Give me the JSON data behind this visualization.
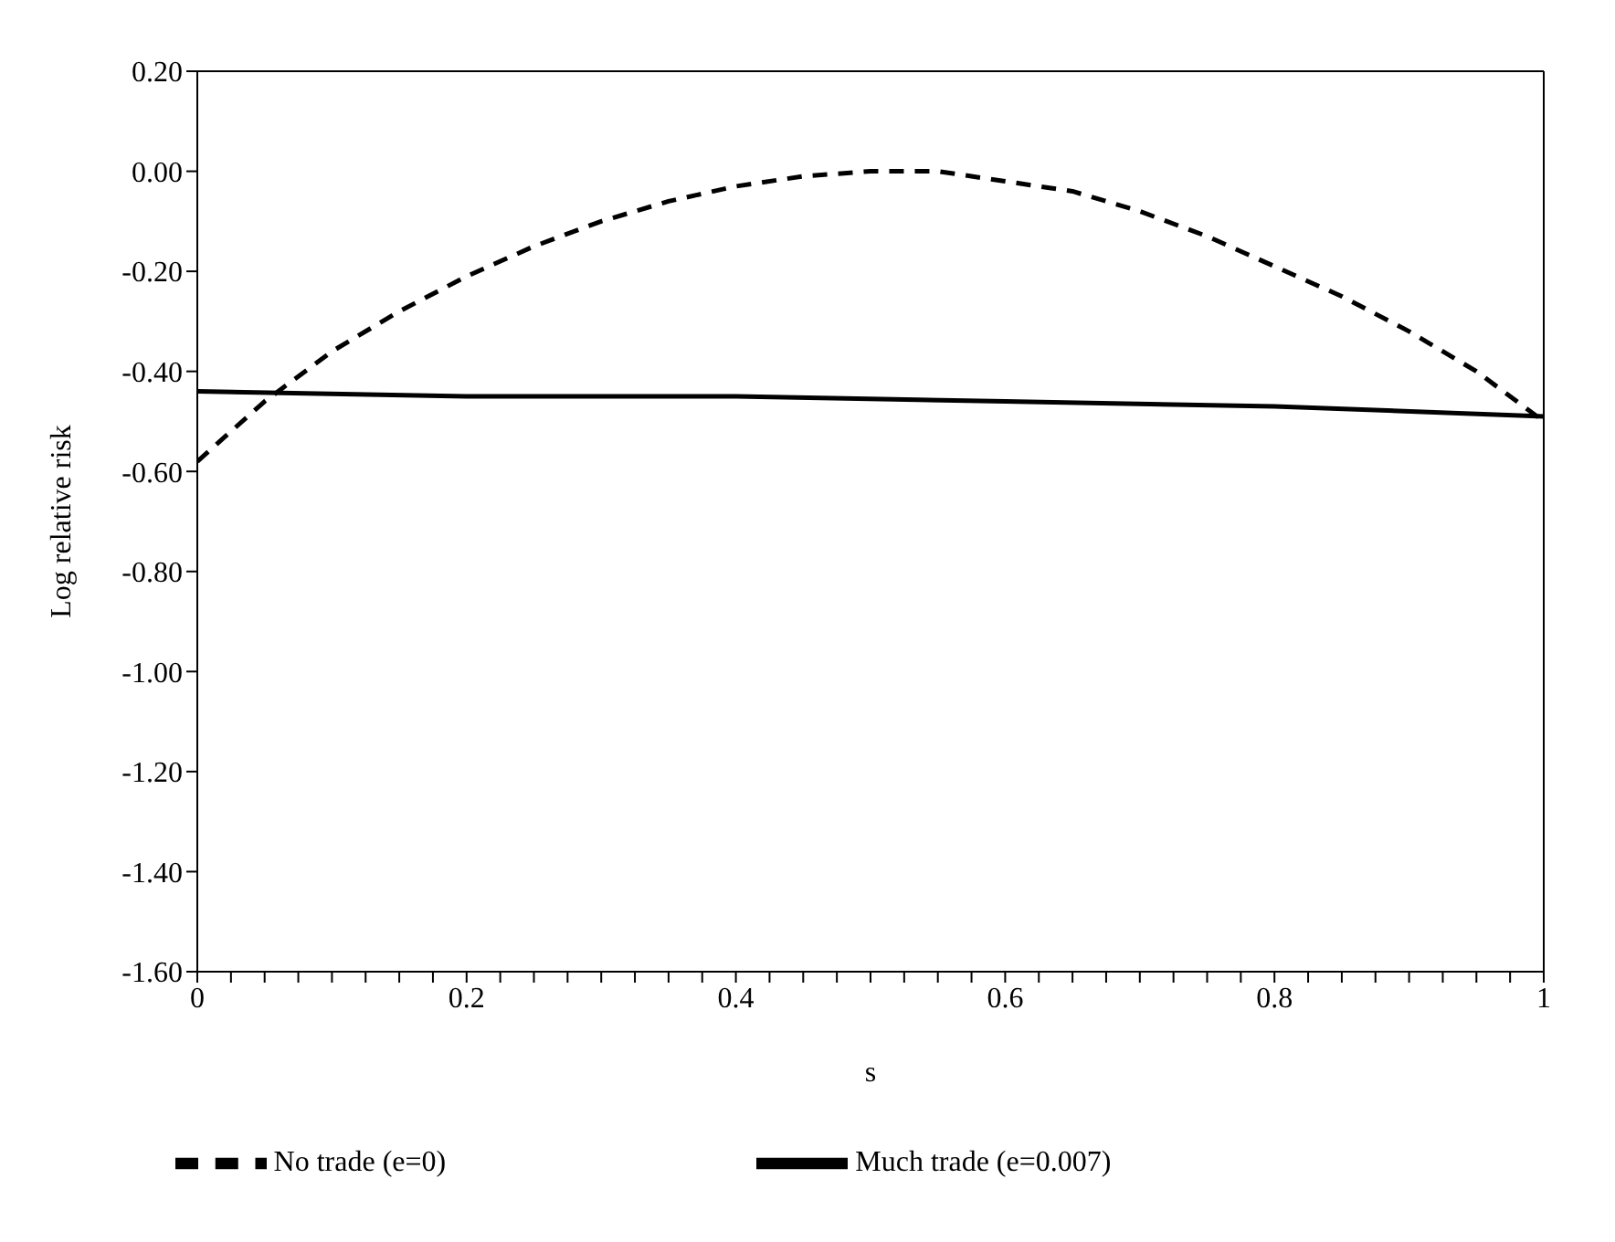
{
  "chart_data": {
    "type": "line",
    "xlabel": "s",
    "ylabel": "Log relative risk",
    "xlim": [
      0,
      1
    ],
    "ylim": [
      -1.6,
      0.2
    ],
    "xticks": [
      0,
      {
        "value": 0.025,
        "label": null
      },
      {
        "value": 0.05,
        "label": null
      },
      {
        "value": 0.075,
        "label": null
      },
      {
        "value": 0.1,
        "label": null
      },
      {
        "value": 0.125,
        "label": null
      },
      {
        "value": 0.15,
        "label": null
      },
      {
        "value": 0.175,
        "label": null
      },
      {
        "value": 0.2,
        "label": "0.2"
      },
      {
        "value": 0.225,
        "label": null
      },
      {
        "value": 0.25,
        "label": null
      },
      {
        "value": 0.275,
        "label": null
      },
      {
        "value": 0.3,
        "label": null
      },
      {
        "value": 0.325,
        "label": null
      },
      {
        "value": 0.35,
        "label": null
      },
      {
        "value": 0.375,
        "label": null
      },
      {
        "value": 0.4,
        "label": "0.4"
      },
      {
        "value": 0.425,
        "label": null
      },
      {
        "value": 0.45,
        "label": null
      },
      {
        "value": 0.475,
        "label": null
      },
      {
        "value": 0.5,
        "label": null
      },
      {
        "value": 0.525,
        "label": null
      },
      {
        "value": 0.55,
        "label": null
      },
      {
        "value": 0.575,
        "label": null
      },
      {
        "value": 0.6,
        "label": "0.6"
      },
      {
        "value": 0.625,
        "label": null
      },
      {
        "value": 0.65,
        "label": null
      },
      {
        "value": 0.675,
        "label": null
      },
      {
        "value": 0.7,
        "label": null
      },
      {
        "value": 0.725,
        "label": null
      },
      {
        "value": 0.75,
        "label": null
      },
      {
        "value": 0.775,
        "label": null
      },
      {
        "value": 0.8,
        "label": "0.8"
      },
      {
        "value": 0.825,
        "label": null
      },
      {
        "value": 0.85,
        "label": null
      },
      {
        "value": 0.875,
        "label": null
      },
      {
        "value": 0.9,
        "label": null
      },
      {
        "value": 0.925,
        "label": null
      },
      {
        "value": 0.95,
        "label": null
      },
      {
        "value": 0.975,
        "label": null
      },
      1
    ],
    "yticks": [
      {
        "value": 0.2,
        "label": "0.20"
      },
      {
        "value": 0,
        "label": "0.00"
      },
      {
        "value": -0.2,
        "label": "-0.20"
      },
      {
        "value": -0.4,
        "label": "-0.40"
      },
      {
        "value": -0.6,
        "label": "-0.60"
      },
      {
        "value": -0.8,
        "label": "-0.80"
      },
      {
        "value": -1,
        "label": "-1.00"
      },
      {
        "value": -1.2,
        "label": "-1.20"
      },
      {
        "value": -1.4,
        "label": "-1.40"
      },
      {
        "value": -1.6,
        "label": "-1.60"
      }
    ],
    "legend": "bottom",
    "marker": "none",
    "series": [
      {
        "name": "No trade (e=0)",
        "color": "#000000",
        "line_style": "dashed",
        "x": [
          0,
          0.05,
          0.1,
          0.15,
          0.2,
          0.25,
          0.3,
          0.35,
          0.4,
          0.45,
          0.5,
          0.55,
          0.6,
          0.65,
          0.7,
          0.75,
          0.8,
          0.85,
          0.9,
          0.95,
          1
        ],
        "values": [
          -0.58,
          -0.46,
          -0.36,
          -0.28,
          -0.21,
          -0.15,
          -0.1,
          -0.06,
          -0.03,
          -0.01,
          0,
          0,
          -0.02,
          -0.04,
          -0.08,
          -0.13,
          -0.19,
          -0.25,
          -0.32,
          -0.4,
          -0.5
        ]
      },
      {
        "name": "Much trade (e=0.007)",
        "color": "#000000",
        "line_style": "solid",
        "x": [
          0,
          0.2,
          0.4,
          0.6,
          0.8,
          1
        ],
        "values": [
          -0.44,
          -0.45,
          -0.45,
          -0.46,
          -0.47,
          -0.49
        ]
      }
    ]
  }
}
